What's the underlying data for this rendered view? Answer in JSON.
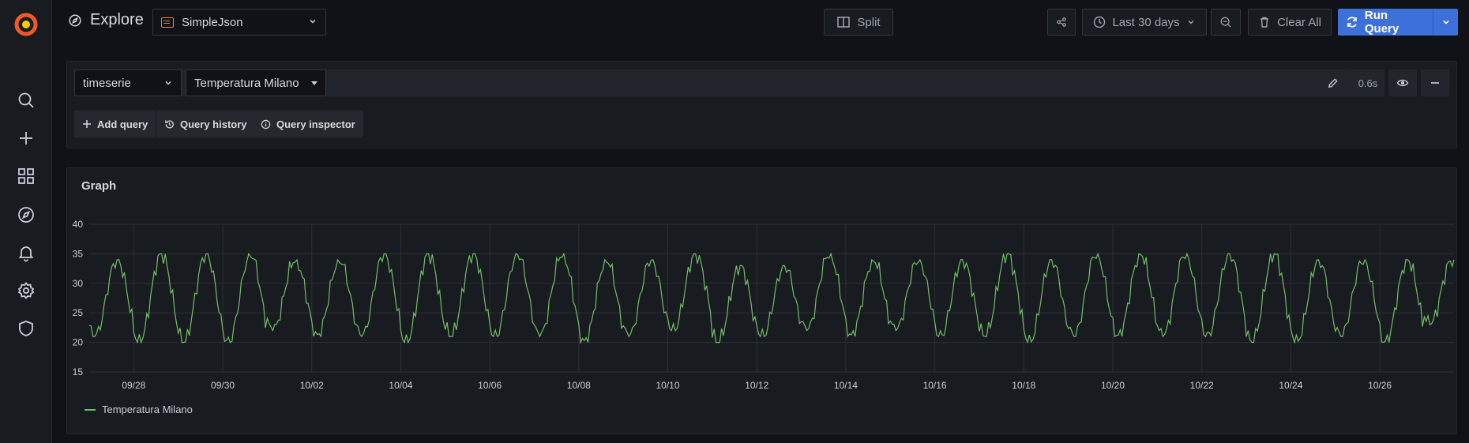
{
  "page": {
    "title": "Explore",
    "datasource": "SimpleJson"
  },
  "toolbar": {
    "split_label": "Split",
    "time_range": "Last 30 days",
    "clear_all": "Clear All",
    "run_query": "Run Query"
  },
  "query": {
    "type": "timeserie",
    "target": "Temperatura Milano",
    "time": "0.6s",
    "add_query": "Add query",
    "query_history": "Query history",
    "query_inspector": "Query inspector"
  },
  "sidebar": {
    "items": [
      {
        "icon": "search-icon"
      },
      {
        "icon": "plus-icon"
      },
      {
        "icon": "dashboards-icon"
      },
      {
        "icon": "compass-icon"
      },
      {
        "icon": "bell-icon"
      },
      {
        "icon": "gear-icon"
      },
      {
        "icon": "shield-icon"
      }
    ]
  },
  "colors": {
    "accent": "#3d71d9",
    "series": "#73bf69",
    "logo": "#f05a28"
  },
  "graph": {
    "title": "Graph"
  },
  "chart_data": {
    "type": "line",
    "title": "Graph",
    "ylim": [
      15,
      40
    ],
    "yticks": [
      15,
      20,
      25,
      30,
      35,
      40
    ],
    "xticks": [
      "09/28",
      "09/30",
      "10/02",
      "10/04",
      "10/06",
      "10/08",
      "10/10",
      "10/12",
      "10/14",
      "10/16",
      "10/18",
      "10/20",
      "10/22",
      "10/24",
      "10/26"
    ],
    "xlim": [
      "09/27 00:00",
      "10/27 16:00"
    ],
    "grid": true,
    "legend": "bottom-left",
    "series": [
      {
        "name": "Temperatura Milano",
        "x": [
          "09/27",
          "09/28",
          "09/29",
          "09/30",
          "10/01",
          "10/02",
          "10/03",
          "10/04",
          "10/05",
          "10/06",
          "10/07",
          "10/08",
          "10/09",
          "10/10",
          "10/11",
          "10/12",
          "10/13",
          "10/14",
          "10/15",
          "10/16",
          "10/17",
          "10/18",
          "10/19",
          "10/20",
          "10/21",
          "10/22",
          "10/23",
          "10/24",
          "10/25",
          "10/26",
          "10/27"
        ],
        "daily_min": [
          21,
          20,
          20,
          20,
          22,
          21,
          21,
          20,
          21,
          21,
          21,
          20,
          21,
          22,
          20,
          21,
          22,
          21,
          22,
          21,
          21,
          20,
          21,
          21,
          21,
          21,
          20,
          20,
          21,
          20,
          23
        ],
        "daily_max": [
          34,
          35,
          35,
          35,
          34,
          34,
          35,
          35,
          35,
          35,
          35,
          34,
          34,
          35,
          33,
          33,
          35,
          34,
          34,
          34,
          35,
          34,
          35,
          35,
          35,
          35,
          35,
          34,
          34,
          34,
          34
        ]
      }
    ]
  }
}
